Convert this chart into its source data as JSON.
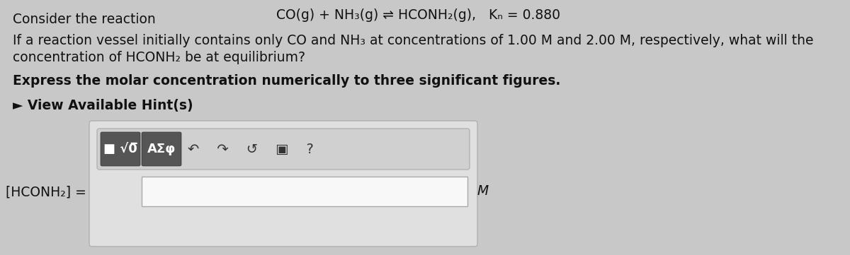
{
  "bg_color": "#c8c8c8",
  "panel_bg": "#e0e0e0",
  "panel_border": "#b0b0b0",
  "toolbar_bg_light": "#d8d8d8",
  "btn_dark": "#555555",
  "input_bg": "#f8f8f8",
  "input_border": "#aaaaaa",
  "text_color": "#111111",
  "line1_left": "Consider the reaction",
  "line1_eq": "CO(g) + NH₃(g) ⇌ HCONH₂(g),   Kₙ = 0.880",
  "line2": "If a reaction vessel initially contains only CO and NH₃ at concentrations of 1.00 M and 2.00 M, respectively, what will the",
  "line3": "concentration of HCONH₂ be at equilibrium?",
  "line4": "Express the molar concentration numerically to three significant figures.",
  "line5": "► View Available Hint(s)",
  "label": "[HCONH₂] =",
  "unit": "M",
  "btn1_text": "■√0̲",
  "btn2_text": "AΣφ",
  "icons_text": "  ↶   ↪   ↻   ☐   ?",
  "figwidth": 12.0,
  "figheight": 3.61,
  "dpi": 100
}
